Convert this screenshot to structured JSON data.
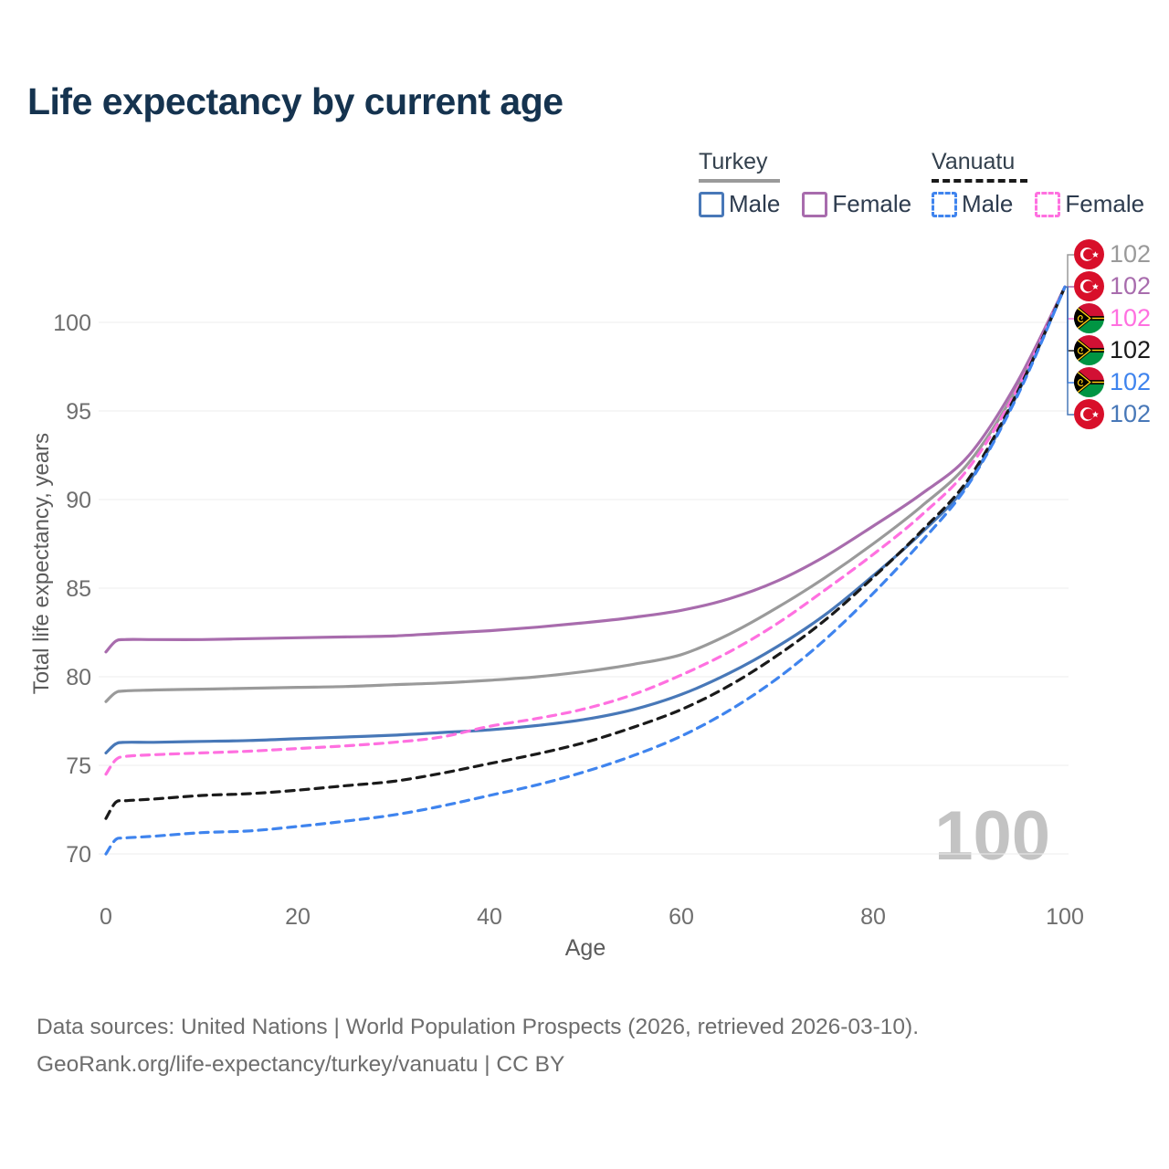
{
  "title": "Life expectancy by current age",
  "watermark": "100",
  "legend": {
    "groups": [
      {
        "label": "Turkey",
        "style": "solid",
        "total_series": "turkey_total",
        "items": [
          {
            "label": "Male",
            "series": "turkey_male"
          },
          {
            "label": "Female",
            "series": "turkey_female"
          }
        ]
      },
      {
        "label": "Vanuatu",
        "style": "dashed",
        "total_series": "vanuatu_total",
        "items": [
          {
            "label": "Male",
            "series": "vanuatu_male"
          },
          {
            "label": "Female",
            "series": "vanuatu_female"
          }
        ]
      }
    ]
  },
  "chart_data": {
    "type": "line",
    "title": "Life expectancy by current age",
    "xlabel": "Age",
    "ylabel": "Total life expectancy, years",
    "xlim": [
      0,
      100
    ],
    "ylim": [
      68,
      103
    ],
    "xticks": [
      0,
      20,
      40,
      60,
      80,
      100
    ],
    "yticks": [
      70,
      75,
      80,
      85,
      90,
      95,
      100
    ],
    "grid": "horizontal",
    "x": [
      0,
      1,
      2,
      5,
      10,
      15,
      20,
      25,
      30,
      35,
      40,
      45,
      50,
      55,
      60,
      65,
      70,
      75,
      80,
      85,
      90,
      95,
      100
    ],
    "series": [
      {
        "id": "turkey_total",
        "name": "Turkey",
        "country": "Turkey",
        "sex": "Both",
        "color": "#9a9a9a",
        "dashed": false,
        "values": [
          78.6,
          79.1,
          79.2,
          79.25,
          79.3,
          79.35,
          79.4,
          79.45,
          79.55,
          79.65,
          79.8,
          80.0,
          80.3,
          80.7,
          81.25,
          82.4,
          83.9,
          85.6,
          87.5,
          89.6,
          92.1,
          96.3,
          102
        ]
      },
      {
        "id": "turkey_female",
        "name": "Turkey Female",
        "country": "Turkey",
        "sex": "Female",
        "color": "#a86cad",
        "dashed": false,
        "values": [
          81.4,
          82.0,
          82.1,
          82.1,
          82.1,
          82.15,
          82.2,
          82.25,
          82.3,
          82.45,
          82.6,
          82.8,
          83.05,
          83.35,
          83.75,
          84.4,
          85.4,
          86.8,
          88.5,
          90.3,
          92.5,
          96.6,
          102
        ]
      },
      {
        "id": "turkey_male",
        "name": "Turkey Male",
        "country": "Turkey",
        "sex": "Male",
        "color": "#4878b8",
        "dashed": false,
        "values": [
          75.7,
          76.2,
          76.3,
          76.3,
          76.35,
          76.4,
          76.5,
          76.6,
          76.7,
          76.85,
          77.0,
          77.25,
          77.6,
          78.15,
          79.0,
          80.2,
          81.7,
          83.5,
          85.7,
          88.1,
          91.0,
          95.9,
          102
        ]
      },
      {
        "id": "vanuatu_female",
        "name": "Vanuatu Female",
        "country": "Vanuatu",
        "sex": "Female",
        "color": "#ff70e0",
        "dashed": true,
        "values": [
          74.5,
          75.3,
          75.5,
          75.6,
          75.7,
          75.8,
          75.95,
          76.1,
          76.3,
          76.6,
          77.2,
          77.65,
          78.2,
          79.0,
          80.1,
          81.4,
          83.0,
          84.9,
          86.9,
          89.1,
          91.8,
          96.2,
          102
        ]
      },
      {
        "id": "vanuatu_total",
        "name": "Vanuatu",
        "country": "Vanuatu",
        "sex": "Both",
        "color": "#1a1a1a",
        "dashed": true,
        "values": [
          72.0,
          72.9,
          73.0,
          73.1,
          73.3,
          73.4,
          73.6,
          73.85,
          74.1,
          74.55,
          75.1,
          75.65,
          76.3,
          77.15,
          78.15,
          79.5,
          81.2,
          83.2,
          85.6,
          88.2,
          91.2,
          96.0,
          102
        ]
      },
      {
        "id": "vanuatu_male",
        "name": "Vanuatu Male",
        "country": "Vanuatu",
        "sex": "Male",
        "color": "#3f84ee",
        "dashed": true,
        "values": [
          70.0,
          70.8,
          70.9,
          71.0,
          71.2,
          71.3,
          71.55,
          71.85,
          72.2,
          72.7,
          73.3,
          73.9,
          74.65,
          75.55,
          76.65,
          78.1,
          79.9,
          82.1,
          84.7,
          87.6,
          90.9,
          95.8,
          102
        ]
      }
    ],
    "end_labels": [
      {
        "flag": "turkey",
        "series": "turkey_total",
        "value": "102"
      },
      {
        "flag": "turkey",
        "series": "turkey_female",
        "value": "102"
      },
      {
        "flag": "vanuatu",
        "series": "vanuatu_female",
        "value": "102"
      },
      {
        "flag": "vanuatu",
        "series": "vanuatu_total",
        "value": "102"
      },
      {
        "flag": "vanuatu",
        "series": "vanuatu_male",
        "value": "102"
      },
      {
        "flag": "turkey",
        "series": "turkey_male",
        "value": "102"
      }
    ]
  },
  "footer": {
    "line1": "Data sources: United Nations | World Population Prospects (2026, retrieved 2026-03-10).",
    "line2": "GeoRank.org/life-expectancy/turkey/vanuatu | CC BY"
  }
}
